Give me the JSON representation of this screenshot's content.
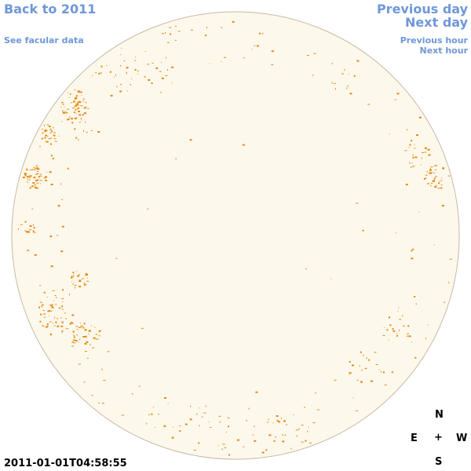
{
  "nav": {
    "back_label": "Back to 2011",
    "facular_label": "See facular data",
    "prev_day_label": "Previous day",
    "next_day_label": "Next day",
    "prev_hour_label": "Previous hour",
    "next_hour_label": "Next hour"
  },
  "timestamp": "2011-01-01T04:58:55",
  "compass": {
    "north": "N",
    "south": "S",
    "east": "E",
    "west": "W",
    "center": "+"
  },
  "colors": {
    "link": "#6f97d8",
    "disk_fill": "#fdf8ec",
    "disk_outline": "#c9b9a4",
    "sunspot": "#e58a10"
  }
}
